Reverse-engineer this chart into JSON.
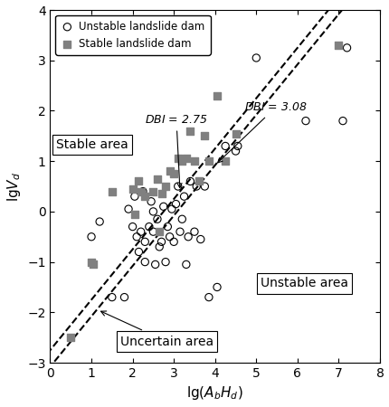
{
  "unstable_x": [
    1.0,
    1.2,
    1.5,
    1.8,
    1.9,
    2.0,
    2.05,
    2.1,
    2.15,
    2.2,
    2.25,
    2.3,
    2.3,
    2.4,
    2.45,
    2.5,
    2.5,
    2.55,
    2.6,
    2.65,
    2.7,
    2.75,
    2.8,
    2.85,
    2.9,
    2.95,
    3.0,
    3.05,
    3.1,
    3.15,
    3.2,
    3.25,
    3.3,
    3.35,
    3.4,
    3.5,
    3.55,
    3.65,
    3.75,
    3.85,
    4.05,
    4.25,
    4.5,
    4.55,
    5.0,
    6.2,
    7.1,
    7.2
  ],
  "unstable_y": [
    -0.5,
    -0.2,
    -1.7,
    -1.7,
    0.05,
    -0.3,
    0.3,
    -0.5,
    -0.8,
    -0.4,
    0.4,
    -0.6,
    -1.0,
    -0.3,
    0.2,
    -0.4,
    0.0,
    -1.05,
    -0.15,
    -0.7,
    -0.6,
    0.1,
    -1.0,
    -0.3,
    -0.5,
    0.05,
    -0.6,
    0.15,
    0.5,
    -0.4,
    -0.15,
    0.3,
    -1.05,
    -0.5,
    0.6,
    -0.4,
    0.5,
    -0.55,
    0.5,
    -1.7,
    -1.5,
    1.3,
    1.2,
    1.3,
    3.05,
    1.8,
    1.8,
    3.25
  ],
  "stable_x": [
    0.5,
    1.0,
    1.05,
    1.5,
    2.0,
    2.05,
    2.15,
    2.2,
    2.3,
    2.5,
    2.6,
    2.65,
    2.7,
    2.8,
    2.9,
    3.0,
    3.1,
    3.2,
    3.3,
    3.4,
    3.5,
    3.6,
    3.75,
    3.85,
    4.05,
    4.25,
    4.5,
    7.0
  ],
  "stable_y": [
    -2.5,
    -1.0,
    -1.05,
    0.4,
    0.45,
    -0.05,
    0.6,
    0.4,
    0.3,
    0.4,
    0.65,
    -0.4,
    0.35,
    0.5,
    0.8,
    0.75,
    1.05,
    1.0,
    1.05,
    1.6,
    1.0,
    0.6,
    1.5,
    1.0,
    2.3,
    1.0,
    1.55,
    3.3
  ],
  "xlim": [
    0,
    8
  ],
  "ylim": [
    -3,
    4
  ],
  "xlabel": "lg($A_b H_d$)",
  "ylabel": "lg$V_d$",
  "legend_unstable": "Unstable landslide dam",
  "legend_stable": "Stable landslide dam",
  "label_stable_area": "Stable area",
  "label_unstable_area": "Unstable area",
  "label_uncertain_area": "Uncertain area",
  "label_dbi275": "DBI = 2.75",
  "label_dbi308": "DBI = 3.08"
}
